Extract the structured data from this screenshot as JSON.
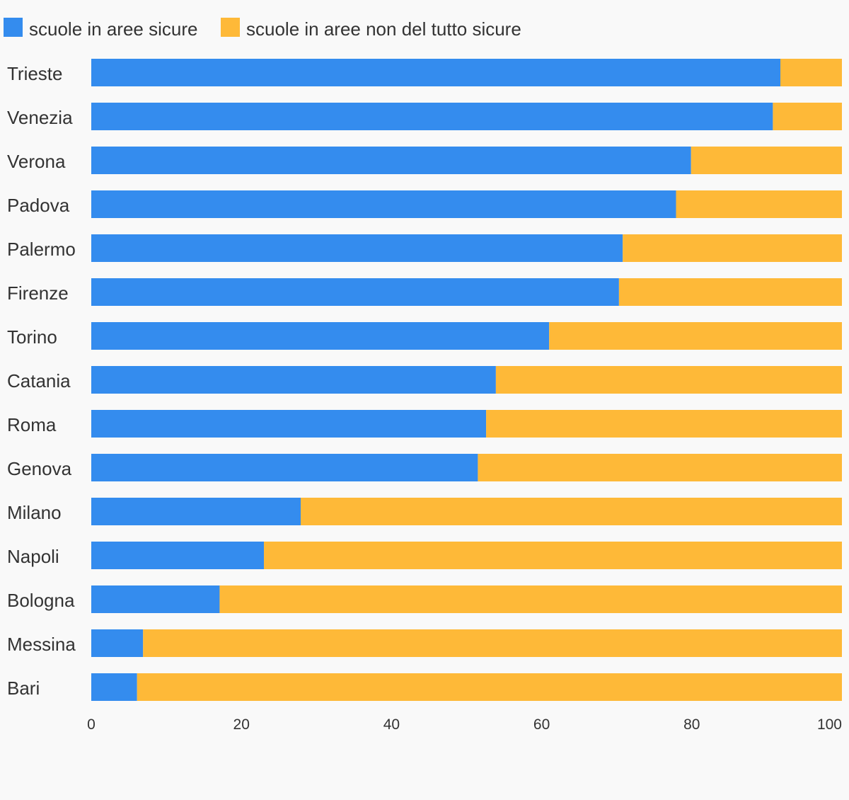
{
  "chart_data": {
    "type": "bar",
    "orientation": "horizontal",
    "stacked": true,
    "title": "",
    "xlabel": "",
    "ylabel": "",
    "xlim": [
      0,
      100
    ],
    "x_ticks": [
      0,
      20,
      40,
      60,
      80,
      100
    ],
    "grid": false,
    "legend_position": "top-left",
    "categories": [
      "Trieste",
      "Venezia",
      "Verona",
      "Padova",
      "Palermo",
      "Firenze",
      "Torino",
      "Catania",
      "Roma",
      "Genova",
      "Milano",
      "Napoli",
      "Bologna",
      "Messina",
      "Bari"
    ],
    "series": [
      {
        "name": "scuole in aree sicure",
        "color": "#348cee",
        "values": [
          91.8,
          90.8,
          79.9,
          77.9,
          70.8,
          70.3,
          61.0,
          53.9,
          52.6,
          51.5,
          27.9,
          23.0,
          17.1,
          6.9,
          6.1
        ]
      },
      {
        "name": "scuole in aree non del tutto sicure",
        "color": "#feb938",
        "values": [
          8.2,
          9.2,
          20.1,
          22.1,
          29.2,
          29.7,
          39.0,
          46.1,
          47.4,
          48.5,
          72.1,
          77.0,
          82.9,
          93.1,
          93.9
        ]
      }
    ]
  }
}
